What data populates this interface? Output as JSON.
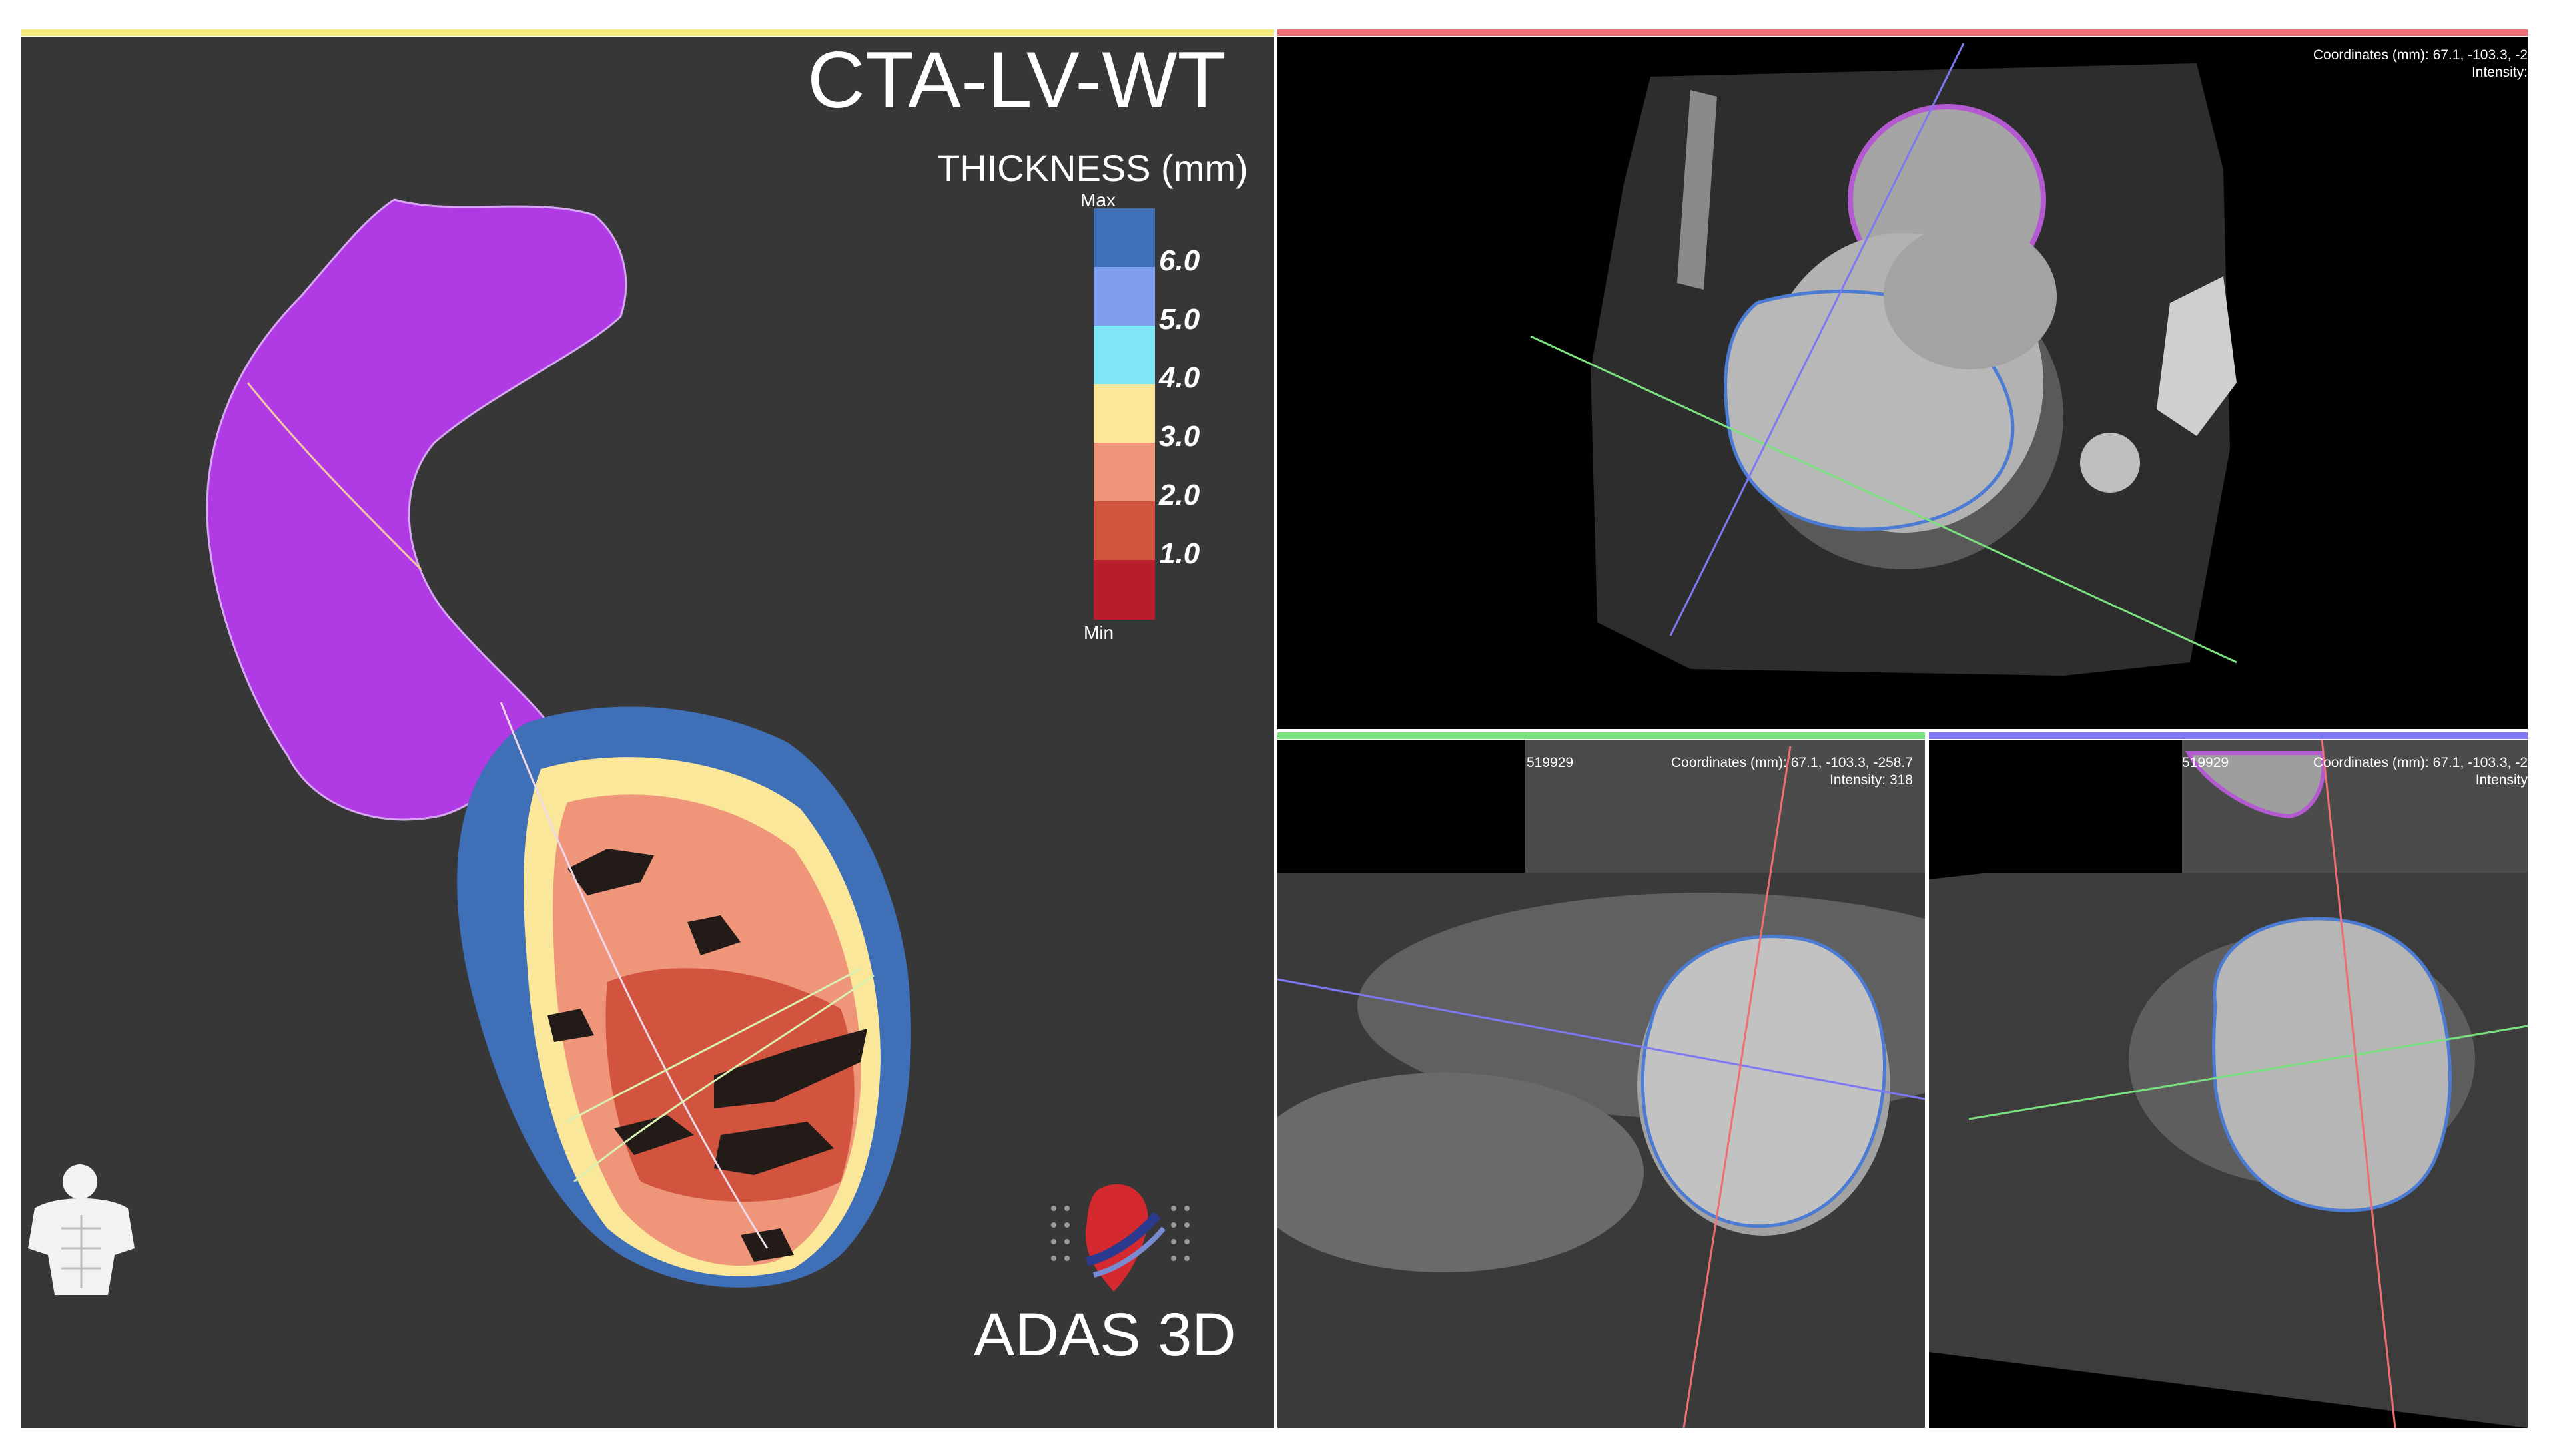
{
  "main_view": {
    "title": "CTA-LV-WT",
    "legend_title": "THICKNESS (mm)",
    "legend_max": "Max",
    "legend_min": "Min",
    "legend_ticks": [
      "6.0",
      "5.0",
      "4.0",
      "3.0",
      "2.0",
      "1.0"
    ],
    "legend_colors": [
      "#3f6fb6",
      "#7f9ef0",
      "#7fe6f5",
      "#fbe79a",
      "#ee957a",
      "#d2543f",
      "#b81d2a"
    ],
    "orientation_icon": "torso-orientation-icon",
    "brand_name": "ADAS 3D",
    "brand_icon": "heart-logo-icon",
    "header_color": "#f3ea79",
    "mesh_colors": {
      "aorta": "#b03ae4",
      "background": "#373737"
    }
  },
  "slice_views": {
    "top": {
      "header_color": "#ef6e73",
      "coordinates": "Coordinates (mm): 67.1, -103.3, -2",
      "intensity": "Intensity:"
    },
    "bottom_left": {
      "header_color": "#7be07f",
      "series_id": "519929",
      "coordinates": "Coordinates (mm): 67.1, -103.3, -258.7",
      "intensity": "Intensity: 318"
    },
    "bottom_right": {
      "header_color": "#7e78f3",
      "series_id": "519929",
      "coordinates": "Coordinates (mm): 67.1, -103.3, -2",
      "intensity": "Intensity"
    }
  }
}
